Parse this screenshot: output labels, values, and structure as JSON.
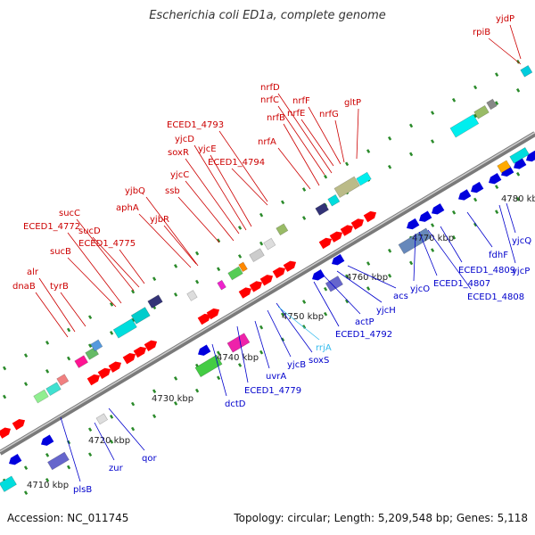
{
  "title": "Escherichia coli ED1a, complete genome",
  "footer": {
    "accession": "Accession: NC_011745",
    "summary": "Topology: circular; Length: 5,209,548 bp; Genes: 5,118"
  },
  "colors": {
    "forward_arrow": "#ff0000",
    "reverse_arrow": "#0000dd",
    "forward_label": "#cc0000",
    "reverse_label": "#0000cc",
    "rna_label": "#33bbee",
    "backbone": "#9a9a9a",
    "tick_dot": "#228822"
  },
  "ticks": [
    "4710 kbp",
    "4720 kbp",
    "4730 kbp",
    "4740 kbp",
    "4750 kbp",
    "4760 kbp",
    "4770 kbp",
    "4780 kbp"
  ],
  "forward_genes": [
    "dnaB",
    "alr",
    "tyrB",
    "sucB",
    "ECED1_4772",
    "sucC",
    "sucD",
    "ECED1_4775",
    "aphA",
    "yjbQ",
    "yjbR",
    "ssb",
    "yjcC",
    "soxR",
    "yjcD",
    "yjcE",
    "ECED1_4793",
    "ECED1_4794",
    "nrfA",
    "nrfB",
    "nrfC",
    "nrfD",
    "nrfE",
    "nrfF",
    "nrfG",
    "gltP",
    "rpiB",
    "yjdP"
  ],
  "reverse_genes": [
    "plsB",
    "zur",
    "qor",
    "dctD",
    "ECED1_4779",
    "uvrA",
    "yjcB",
    "soxS",
    "ECED1_4792",
    "actP",
    "yjcH",
    "acs",
    "yjcO",
    "ECED1_4807",
    "ECED1_4808",
    "ECED1_4809",
    "fdhF",
    "yjcP",
    "yjcQ"
  ],
  "rna_genes": [
    "rrjA"
  ]
}
